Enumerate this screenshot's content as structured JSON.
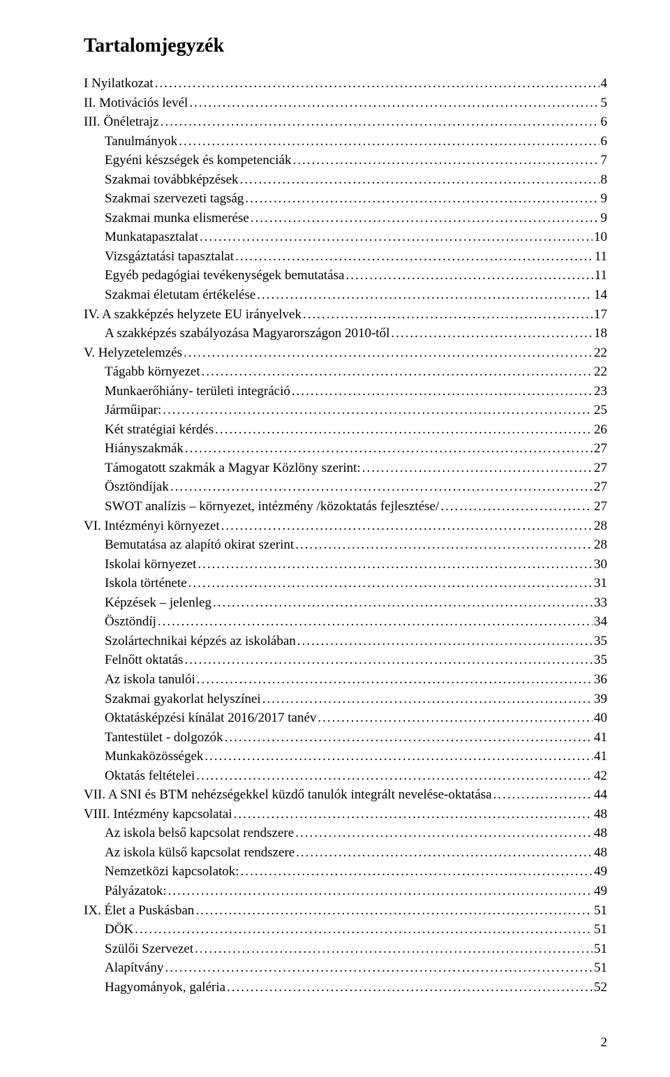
{
  "title": "Tartalomjegyzék",
  "entries": [
    {
      "label": "I Nyilatkozat",
      "page": "4",
      "indent": false
    },
    {
      "label": "II. Motivációs levél",
      "page": "5",
      "indent": false
    },
    {
      "label": "III. Önéletrajz",
      "page": "6",
      "indent": false
    },
    {
      "label": "Tanulmányok",
      "page": "6",
      "indent": true
    },
    {
      "label": "Egyéni készségek és kompetenciák",
      "page": "7",
      "indent": true
    },
    {
      "label": "Szakmai továbbképzések",
      "page": "8",
      "indent": true
    },
    {
      "label": "Szakmai szervezeti tagság",
      "page": "9",
      "indent": true
    },
    {
      "label": "Szakmai munka elismerése",
      "page": "9",
      "indent": true
    },
    {
      "label": "Munkatapasztalat",
      "page": "10",
      "indent": true
    },
    {
      "label": "Vizsgáztatási tapasztalat",
      "page": "11",
      "indent": true
    },
    {
      "label": "Egyéb pedagógiai tevékenységek bemutatása",
      "page": "11",
      "indent": true
    },
    {
      "label": "Szakmai életutam értékelése",
      "page": "14",
      "indent": true
    },
    {
      "label": "IV. A szakképzés helyzete EU irányelvek",
      "page": "17",
      "indent": false
    },
    {
      "label": "A szakképzés szabályozása Magyarországon 2010-től",
      "page": "18",
      "indent": true
    },
    {
      "label": "V. Helyzetelemzés",
      "page": "22",
      "indent": false
    },
    {
      "label": "Tágabb környezet",
      "page": "22",
      "indent": true
    },
    {
      "label": "Munkaerőhiány- területi integráció",
      "page": "23",
      "indent": true
    },
    {
      "label": "Járműipar:",
      "page": "25",
      "indent": true
    },
    {
      "label": "Két stratégiai kérdés",
      "page": "26",
      "indent": true
    },
    {
      "label": "Hiányszakmák",
      "page": "27",
      "indent": true
    },
    {
      "label": "Támogatott szakmák a Magyar Közlöny szerint:",
      "page": "27",
      "indent": true
    },
    {
      "label": "Ösztöndíjak",
      "page": "27",
      "indent": true
    },
    {
      "label": "SWOT analízis – környezet, intézmény /közoktatás fejlesztése/",
      "page": "27",
      "indent": true
    },
    {
      "label": "VI. Intézményi környezet",
      "page": "28",
      "indent": false
    },
    {
      "label": "Bemutatása az alapító okirat szerint",
      "page": "28",
      "indent": true
    },
    {
      "label": "Iskolai környezet",
      "page": "30",
      "indent": true
    },
    {
      "label": "Iskola története",
      "page": "31",
      "indent": true
    },
    {
      "label": "Képzések – jelenleg",
      "page": "33",
      "indent": true
    },
    {
      "label": "Ösztöndíj",
      "page": "34",
      "indent": true
    },
    {
      "label": "Szolártechnikai képzés az iskolában",
      "page": "35",
      "indent": true
    },
    {
      "label": "Felnőtt oktatás",
      "page": "35",
      "indent": true
    },
    {
      "label": "Az iskola tanulói",
      "page": "36",
      "indent": true
    },
    {
      "label": "Szakmai gyakorlat helyszínei",
      "page": "39",
      "indent": true
    },
    {
      "label": "Oktatásképzési kínálat 2016/2017 tanév",
      "page": "40",
      "indent": true
    },
    {
      "label": "Tantestület - dolgozók",
      "page": "41",
      "indent": true
    },
    {
      "label": "Munkaközösségek",
      "page": "41",
      "indent": true
    },
    {
      "label": "Oktatás feltételei",
      "page": "42",
      "indent": true
    },
    {
      "label": "VII. A SNI és BTM nehézségekkel küzdő tanulók integrált nevelése-oktatása",
      "page": "44",
      "indent": false
    },
    {
      "label": "VIII. Intézmény kapcsolatai",
      "page": "48",
      "indent": false
    },
    {
      "label": "Az iskola belső kapcsolat rendszere",
      "page": "48",
      "indent": true
    },
    {
      "label": "Az iskola külső kapcsolat rendszere",
      "page": "48",
      "indent": true
    },
    {
      "label": "Nemzetközi kapcsolatok:",
      "page": "49",
      "indent": true
    },
    {
      "label": "Pályázatok:",
      "page": "49",
      "indent": true
    },
    {
      "label": "IX. Élet a Puskásban",
      "page": "51",
      "indent": false
    },
    {
      "label": "DÖK",
      "page": "51",
      "indent": true
    },
    {
      "label": "Szülői Szervezet",
      "page": "51",
      "indent": true
    },
    {
      "label": "Alapítvány",
      "page": "51",
      "indent": true
    },
    {
      "label": "Hagyományok, galéria",
      "page": "52",
      "indent": true
    }
  ],
  "pageNumber": "2"
}
